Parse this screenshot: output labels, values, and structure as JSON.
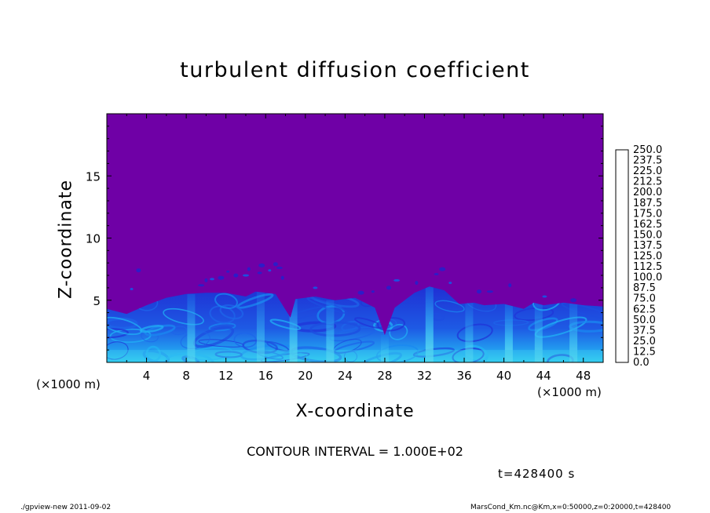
{
  "figure": {
    "contour_interval": "CONTOUR INTERVAL = 1.000E+02",
    "time_label": "t=428400 s",
    "footer_left": "./gpview-new  2011-09-02",
    "footer_right": "MarsCond_Km.nc@Km,x=0:50000,z=0:20000,t=428400"
  },
  "chart_data": {
    "type": "heatmap",
    "title": "turbulent diffusion coefficient",
    "xlabel": "X-coordinate",
    "ylabel": "Z-coordinate",
    "x_unit": "(×1000 m)",
    "x_unit_right": "(×1000 m)",
    "xlim": [
      0,
      50
    ],
    "ylim": [
      0,
      20
    ],
    "x_ticks": [
      4,
      8,
      12,
      16,
      20,
      24,
      28,
      32,
      36,
      40,
      44,
      48
    ],
    "y_ticks": [
      5,
      10,
      15
    ],
    "colorbar": {
      "levels": [
        "0.0",
        "12.5",
        "25.0",
        "37.5",
        "50.0",
        "62.5",
        "75.0",
        "87.5",
        "100.0",
        "112.5",
        "125.0",
        "137.5",
        "150.0",
        "162.5",
        "175.0",
        "187.5",
        "200.0",
        "212.5",
        "225.0",
        "237.5",
        "250.0"
      ],
      "colors": [
        "#6f00a6",
        "#2d1cc8",
        "#2034d8",
        "#1e4ee0",
        "#1e66ea",
        "#1a88f0",
        "#20b0f4",
        "#14d8e0",
        "#00e6a8",
        "#00e070",
        "#00d838",
        "#24e024",
        "#6ee81e",
        "#b2ee14",
        "#e8ee00",
        "#ffc800",
        "#ff9c00",
        "#ff6a00",
        "#ff3c10",
        "#ff5050",
        "#ff9090"
      ]
    },
    "background_value": 0.0,
    "boundary_layer_top": [
      [
        0,
        4.3
      ],
      [
        2,
        3.9
      ],
      [
        4,
        4.6
      ],
      [
        6,
        5.2
      ],
      [
        8,
        5.5
      ],
      [
        10,
        5.6
      ],
      [
        12,
        5.6
      ],
      [
        14,
        5.3
      ],
      [
        15,
        5.7
      ],
      [
        17,
        5.5
      ],
      [
        18.5,
        3.6
      ],
      [
        19,
        5.1
      ],
      [
        21,
        5.3
      ],
      [
        23,
        5.0
      ],
      [
        25,
        5.2
      ],
      [
        27,
        4.4
      ],
      [
        28,
        2.2
      ],
      [
        29,
        4.4
      ],
      [
        31,
        5.6
      ],
      [
        32.5,
        6.1
      ],
      [
        34,
        5.8
      ],
      [
        35.5,
        4.7
      ],
      [
        37,
        4.8
      ],
      [
        38,
        4.6
      ],
      [
        40,
        4.7
      ],
      [
        42,
        4.3
      ],
      [
        43,
        4.8
      ],
      [
        44,
        4.6
      ],
      [
        46,
        4.8
      ],
      [
        48,
        4.6
      ],
      [
        50,
        4.5
      ]
    ],
    "updraft_columns": [
      {
        "x": 8.5,
        "intensity": 62.5
      },
      {
        "x": 15.5,
        "intensity": 50.0
      },
      {
        "x": 18.8,
        "intensity": 75.0
      },
      {
        "x": 22.5,
        "intensity": 62.5
      },
      {
        "x": 28.0,
        "intensity": 50.0
      },
      {
        "x": 32.5,
        "intensity": 75.0
      },
      {
        "x": 36.5,
        "intensity": 50.0
      },
      {
        "x": 40.5,
        "intensity": 75.0
      },
      {
        "x": 43.5,
        "intensity": 62.5
      },
      {
        "x": 47.0,
        "intensity": 62.5
      }
    ],
    "scattered_blobs": [
      [
        2.5,
        5.9
      ],
      [
        3.2,
        7.4
      ],
      [
        9.5,
        6.2
      ],
      [
        10.0,
        6.6
      ],
      [
        10.6,
        6.7
      ],
      [
        11.5,
        6.8
      ],
      [
        12.2,
        7.3
      ],
      [
        13.0,
        7.0
      ],
      [
        14.0,
        7.0
      ],
      [
        14.3,
        7.5
      ],
      [
        15.4,
        7.2
      ],
      [
        15.6,
        7.8
      ],
      [
        16.4,
        7.4
      ],
      [
        17.0,
        7.9
      ],
      [
        17.4,
        7.6
      ],
      [
        17.7,
        6.8
      ],
      [
        21.0,
        6.0
      ],
      [
        25.6,
        5.6
      ],
      [
        26.8,
        5.7
      ],
      [
        28.4,
        6.0
      ],
      [
        29.2,
        6.6
      ],
      [
        31.2,
        6.4
      ],
      [
        33.2,
        7.1
      ],
      [
        33.8,
        7.5
      ],
      [
        34.6,
        6.4
      ],
      [
        37.5,
        5.7
      ],
      [
        38.6,
        5.7
      ],
      [
        40.6,
        6.2
      ],
      [
        44.1,
        5.3
      ],
      [
        47.0,
        5.0
      ]
    ]
  }
}
